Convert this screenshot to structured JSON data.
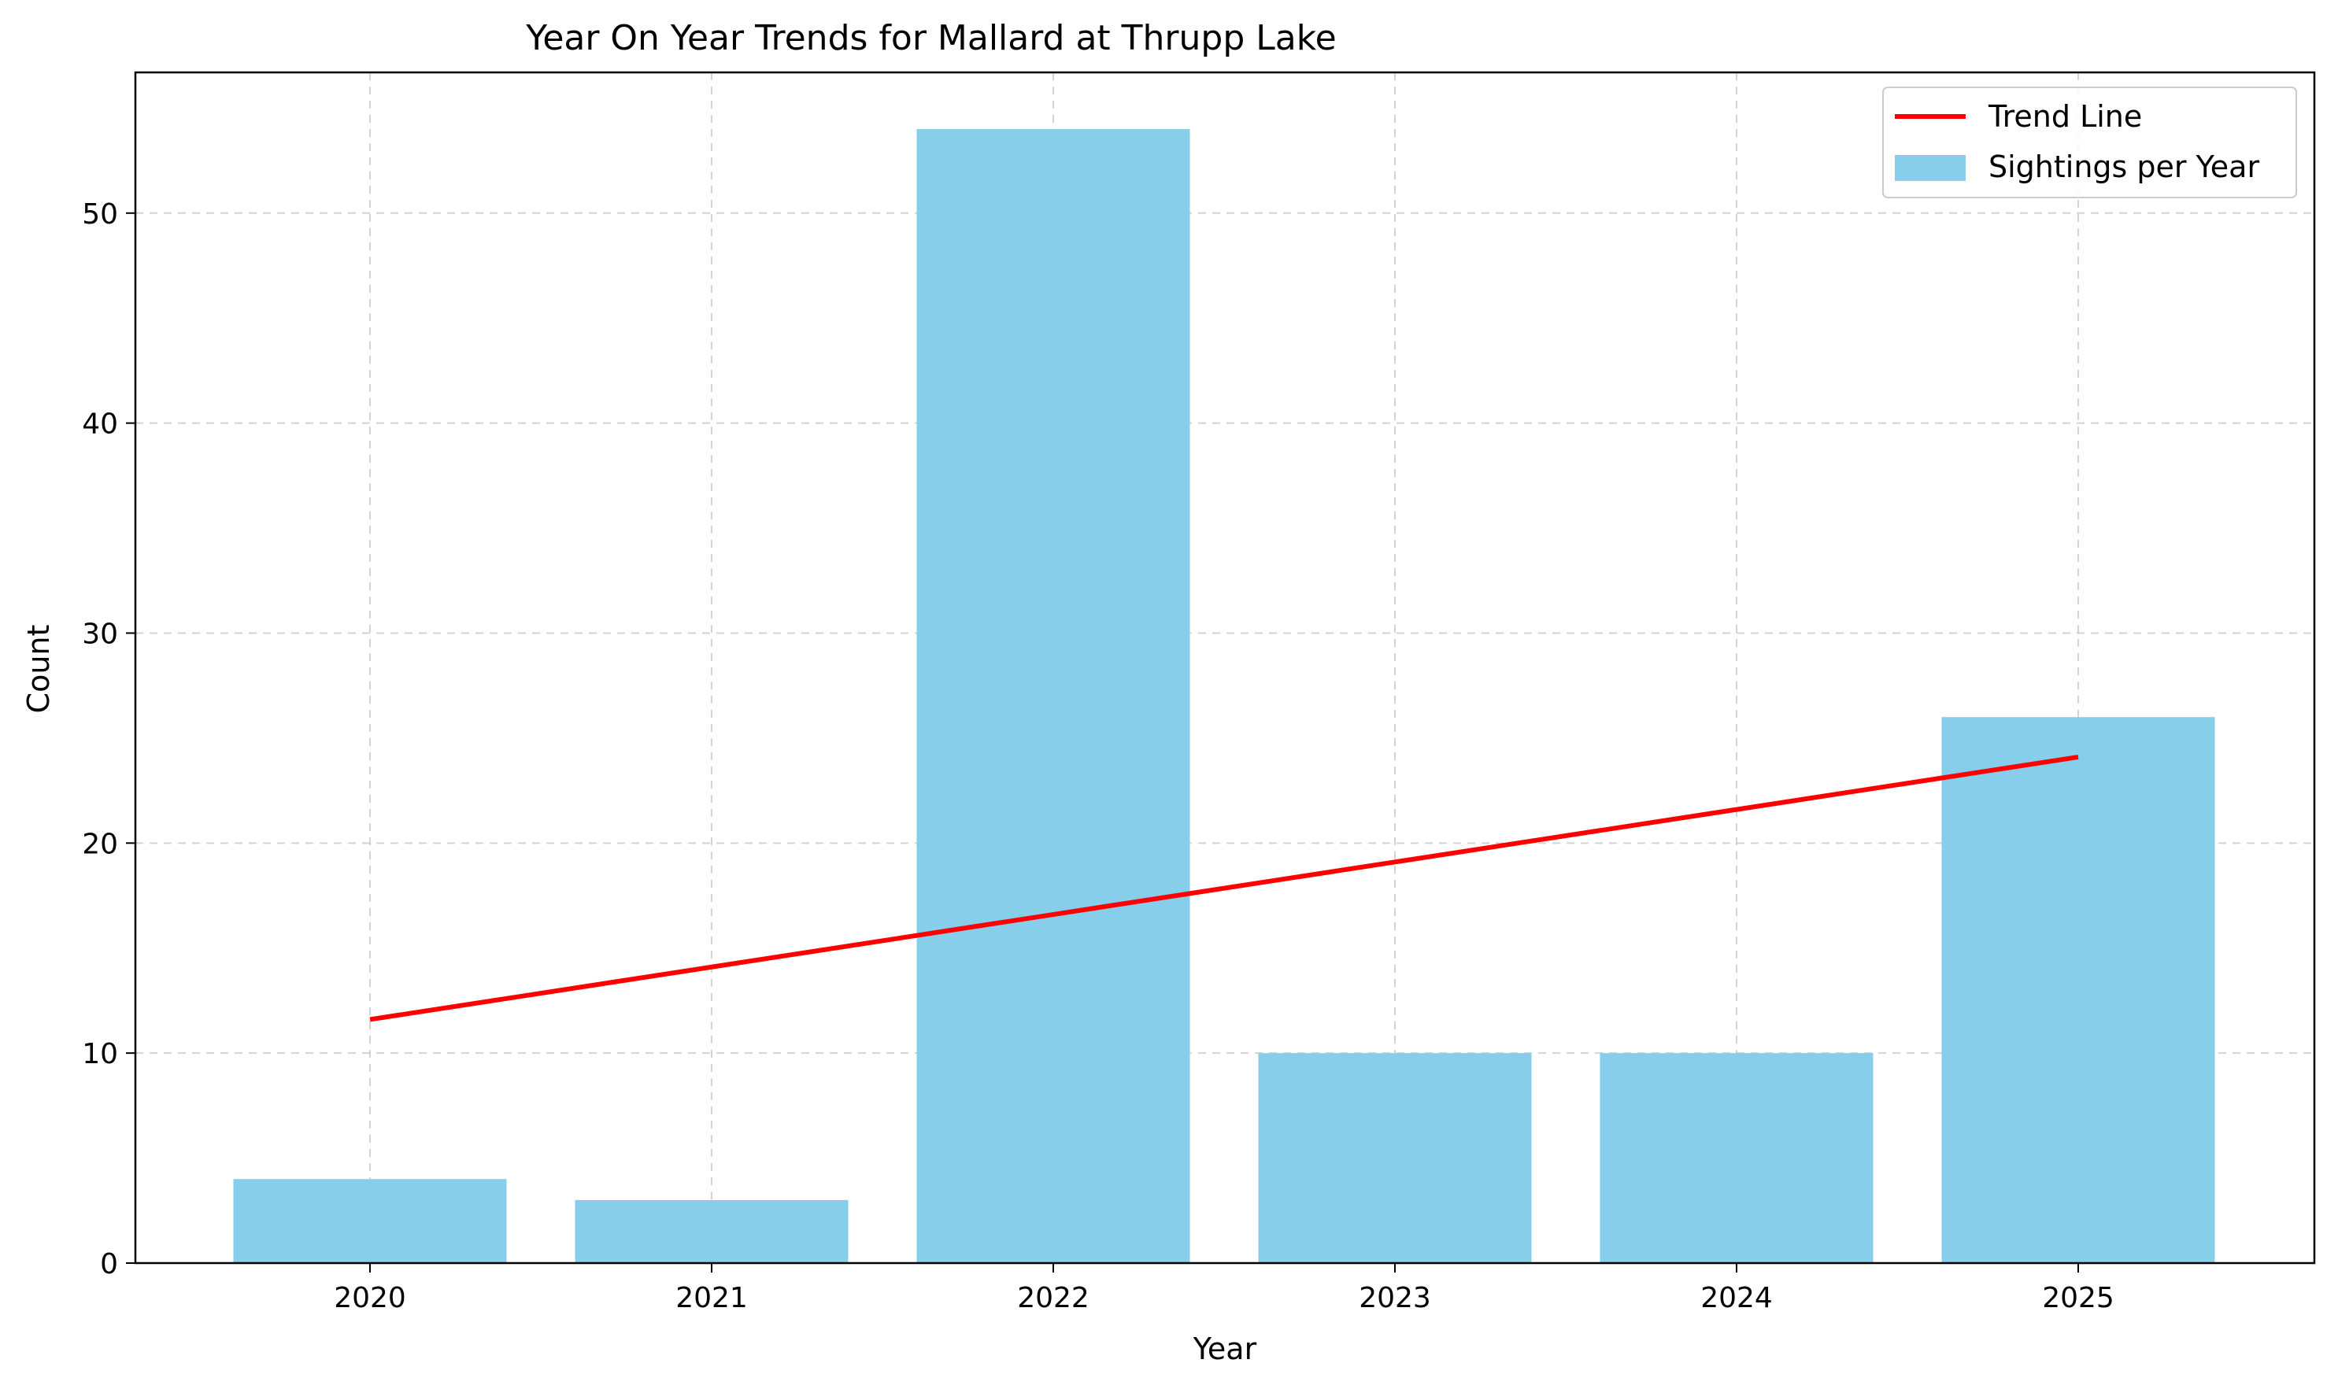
{
  "chart_data": {
    "type": "bar",
    "title": "Year On Year Trends for Mallard at Thrupp Lake",
    "xlabel": "Year",
    "ylabel": "Count",
    "categories": [
      "2020",
      "2021",
      "2022",
      "2023",
      "2024",
      "2025"
    ],
    "series": [
      {
        "name": "Sightings per Year",
        "type": "bar",
        "color": "#87ceeb",
        "values": [
          4,
          3,
          54,
          10,
          10,
          26
        ]
      },
      {
        "name": "Trend Line",
        "type": "line",
        "color": "#ff0000",
        "values": [
          11.6,
          14.1,
          16.6,
          19.1,
          21.6,
          24.1
        ]
      }
    ],
    "ylim": [
      0,
      56.7
    ],
    "yticks": [
      0,
      10,
      20,
      30,
      40,
      50
    ],
    "grid": true,
    "legend_position": "top-right"
  }
}
